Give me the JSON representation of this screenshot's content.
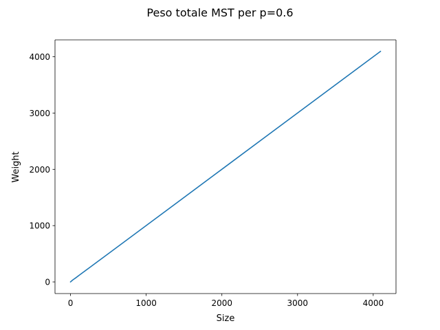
{
  "chart_data": {
    "type": "line",
    "title": "Peso totale MST per p=0.6",
    "xlabel": "Size",
    "ylabel": "Weight",
    "xlim": [
      -205,
      4301
    ],
    "ylim": [
      -207,
      4300
    ],
    "xticks": [
      0,
      1000,
      2000,
      3000,
      4000
    ],
    "yticks": [
      0,
      1000,
      2000,
      3000,
      4000
    ],
    "grid": false,
    "series": [
      {
        "color": "#1f77b4",
        "x": [
          0,
          16,
          32,
          64,
          128,
          256,
          512,
          1024,
          2048,
          4096
        ],
        "y": [
          0,
          19,
          37,
          67,
          132,
          259,
          514,
          1025,
          2049,
          4096
        ]
      }
    ]
  }
}
